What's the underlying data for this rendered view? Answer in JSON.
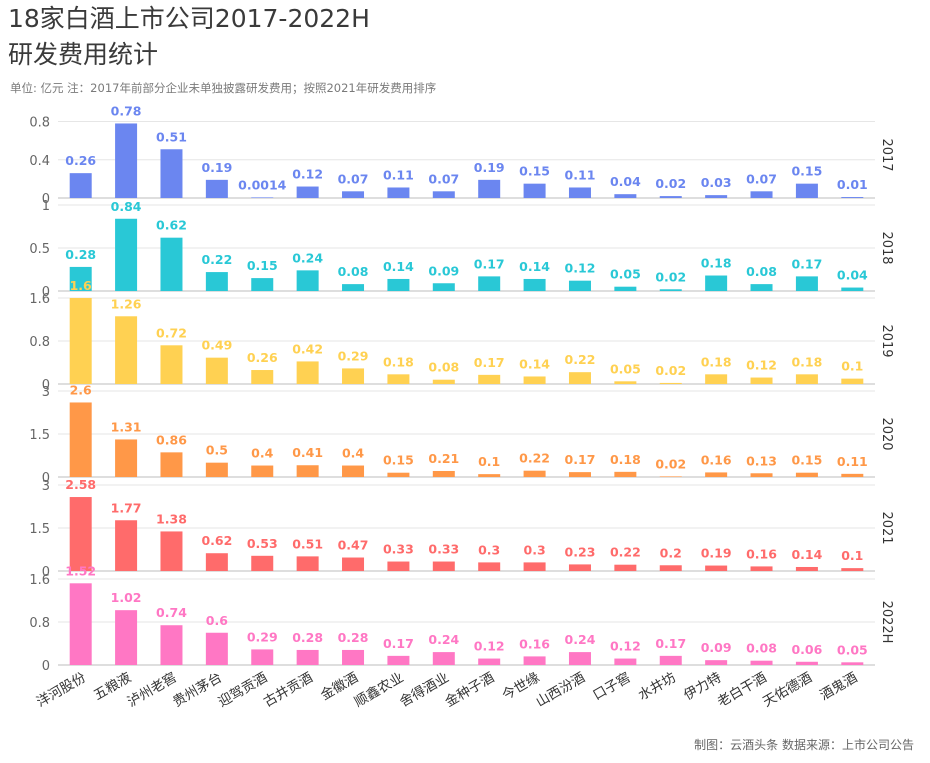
{
  "title_line1": "18家白酒上市公司2017-2022H",
  "title_line2": "研发费用统计",
  "subtitle": "单位: 亿元    注：2017年前部分企业未单独披露研发费用；按照2021年研发费用排序",
  "footer": "制图：云酒头条    数据来源：上市公司公告",
  "chart_data": {
    "type": "bar",
    "unit": "亿元",
    "categories": [
      "洋河股份",
      "五粮液",
      "泸州老窖",
      "贵州茅台",
      "迎驾贡酒",
      "古井贡酒",
      "金徽酒",
      "顺鑫农业",
      "舍得酒业",
      "金种子酒",
      "今世缘",
      "山西汾酒",
      "口子窖",
      "水井坊",
      "伊力特",
      "老白干酒",
      "天佑德酒",
      "酒鬼酒"
    ],
    "panels": [
      {
        "name": "2017",
        "color": "#6b86f0",
        "ylim": [
          0,
          0.9
        ],
        "yticks": [
          "0",
          "0.4",
          "0.8"
        ],
        "ytick_values": [
          0,
          0.4,
          0.8
        ],
        "values": [
          0.26,
          0.78,
          0.51,
          0.19,
          0.0014,
          0.12,
          0.07,
          0.11,
          0.07,
          0.19,
          0.15,
          0.11,
          0.04,
          0.02,
          0.03,
          0.07,
          0.15,
          0.01
        ],
        "labels": [
          "0.26",
          "0.78",
          "0.51",
          "0.19",
          "0.0014",
          "0.12",
          "0.07",
          "0.11",
          "0.07",
          "0.19",
          "0.15",
          "0.11",
          "0.04",
          "0.02",
          "0.03",
          "0.07",
          "0.15",
          "0.01"
        ]
      },
      {
        "name": "2018",
        "color": "#29c8d6",
        "ylim": [
          0,
          1.0
        ],
        "yticks": [
          "0",
          "0.5",
          "1"
        ],
        "ytick_values": [
          0,
          0.5,
          1
        ],
        "values": [
          0.28,
          0.84,
          0.62,
          0.22,
          0.15,
          0.24,
          0.08,
          0.14,
          0.09,
          0.17,
          0.14,
          0.12,
          0.05,
          0.02,
          0.18,
          0.08,
          0.17,
          0.04
        ],
        "labels": [
          "0.28",
          "0.84",
          "0.62",
          "0.22",
          "0.15",
          "0.24",
          "0.08",
          "0.14",
          "0.09",
          "0.17",
          "0.14",
          "0.12",
          "0.05",
          "0.02",
          "0.18",
          "0.08",
          "0.17",
          "0.04"
        ]
      },
      {
        "name": "2019",
        "color": "#ffd152",
        "ylim": [
          0,
          1.6
        ],
        "yticks": [
          "0",
          "0.8",
          "1.6"
        ],
        "ytick_values": [
          0,
          0.8,
          1.6
        ],
        "values": [
          1.6,
          1.26,
          0.72,
          0.49,
          0.26,
          0.42,
          0.29,
          0.18,
          0.08,
          0.17,
          0.14,
          0.22,
          0.05,
          0.02,
          0.18,
          0.12,
          0.18,
          0.1
        ],
        "labels": [
          "1.6",
          "1.26",
          "0.72",
          "0.49",
          "0.26",
          "0.42",
          "0.29",
          "0.18",
          "0.08",
          "0.17",
          "0.14",
          "0.22",
          "0.05",
          "0.02",
          "0.18",
          "0.12",
          "0.18",
          "0.1"
        ]
      },
      {
        "name": "2020",
        "color": "#ff9848",
        "ylim": [
          0,
          3.0
        ],
        "yticks": [
          "0",
          "1.5",
          "3"
        ],
        "ytick_values": [
          0,
          1.5,
          3
        ],
        "values": [
          2.6,
          1.31,
          0.86,
          0.5,
          0.4,
          0.41,
          0.4,
          0.15,
          0.21,
          0.1,
          0.22,
          0.17,
          0.18,
          0.02,
          0.16,
          0.13,
          0.15,
          0.11
        ],
        "labels": [
          "2.6",
          "1.31",
          "0.86",
          "0.5",
          "0.4",
          "0.41",
          "0.4",
          "0.15",
          "0.21",
          "0.1",
          "0.22",
          "0.17",
          "0.18",
          "0.02",
          "0.16",
          "0.13",
          "0.15",
          "0.11"
        ]
      },
      {
        "name": "2021",
        "color": "#ff6b6b",
        "ylim": [
          0,
          3.0
        ],
        "yticks": [
          "0",
          "1.5",
          "3"
        ],
        "ytick_values": [
          0,
          1.5,
          3
        ],
        "values": [
          2.58,
          1.77,
          1.38,
          0.62,
          0.53,
          0.51,
          0.47,
          0.33,
          0.33,
          0.3,
          0.3,
          0.23,
          0.22,
          0.2,
          0.19,
          0.16,
          0.14,
          0.1
        ],
        "labels": [
          "2.58",
          "1.77",
          "1.38",
          "0.62",
          "0.53",
          "0.51",
          "0.47",
          "0.33",
          "0.33",
          "0.3",
          "0.3",
          "0.23",
          "0.22",
          "0.2",
          "0.19",
          "0.16",
          "0.14",
          "0.1"
        ]
      },
      {
        "name": "2022H",
        "color": "#ff77c4",
        "ylim": [
          0,
          1.6
        ],
        "yticks": [
          "0",
          "0.8",
          "1.6"
        ],
        "ytick_values": [
          0,
          0.8,
          1.6
        ],
        "values": [
          1.52,
          1.02,
          0.74,
          0.6,
          0.29,
          0.28,
          0.28,
          0.17,
          0.24,
          0.12,
          0.16,
          0.24,
          0.12,
          0.17,
          0.09,
          0.08,
          0.06,
          0.05
        ],
        "labels": [
          "1.52",
          "1.02",
          "0.74",
          "0.6",
          "0.29",
          "0.28",
          "0.28",
          "0.17",
          "0.24",
          "0.12",
          "0.16",
          "0.24",
          "0.12",
          "0.17",
          "0.09",
          "0.08",
          "0.06",
          "0.05"
        ]
      }
    ],
    "grid": "horizontal",
    "legend": "none"
  }
}
